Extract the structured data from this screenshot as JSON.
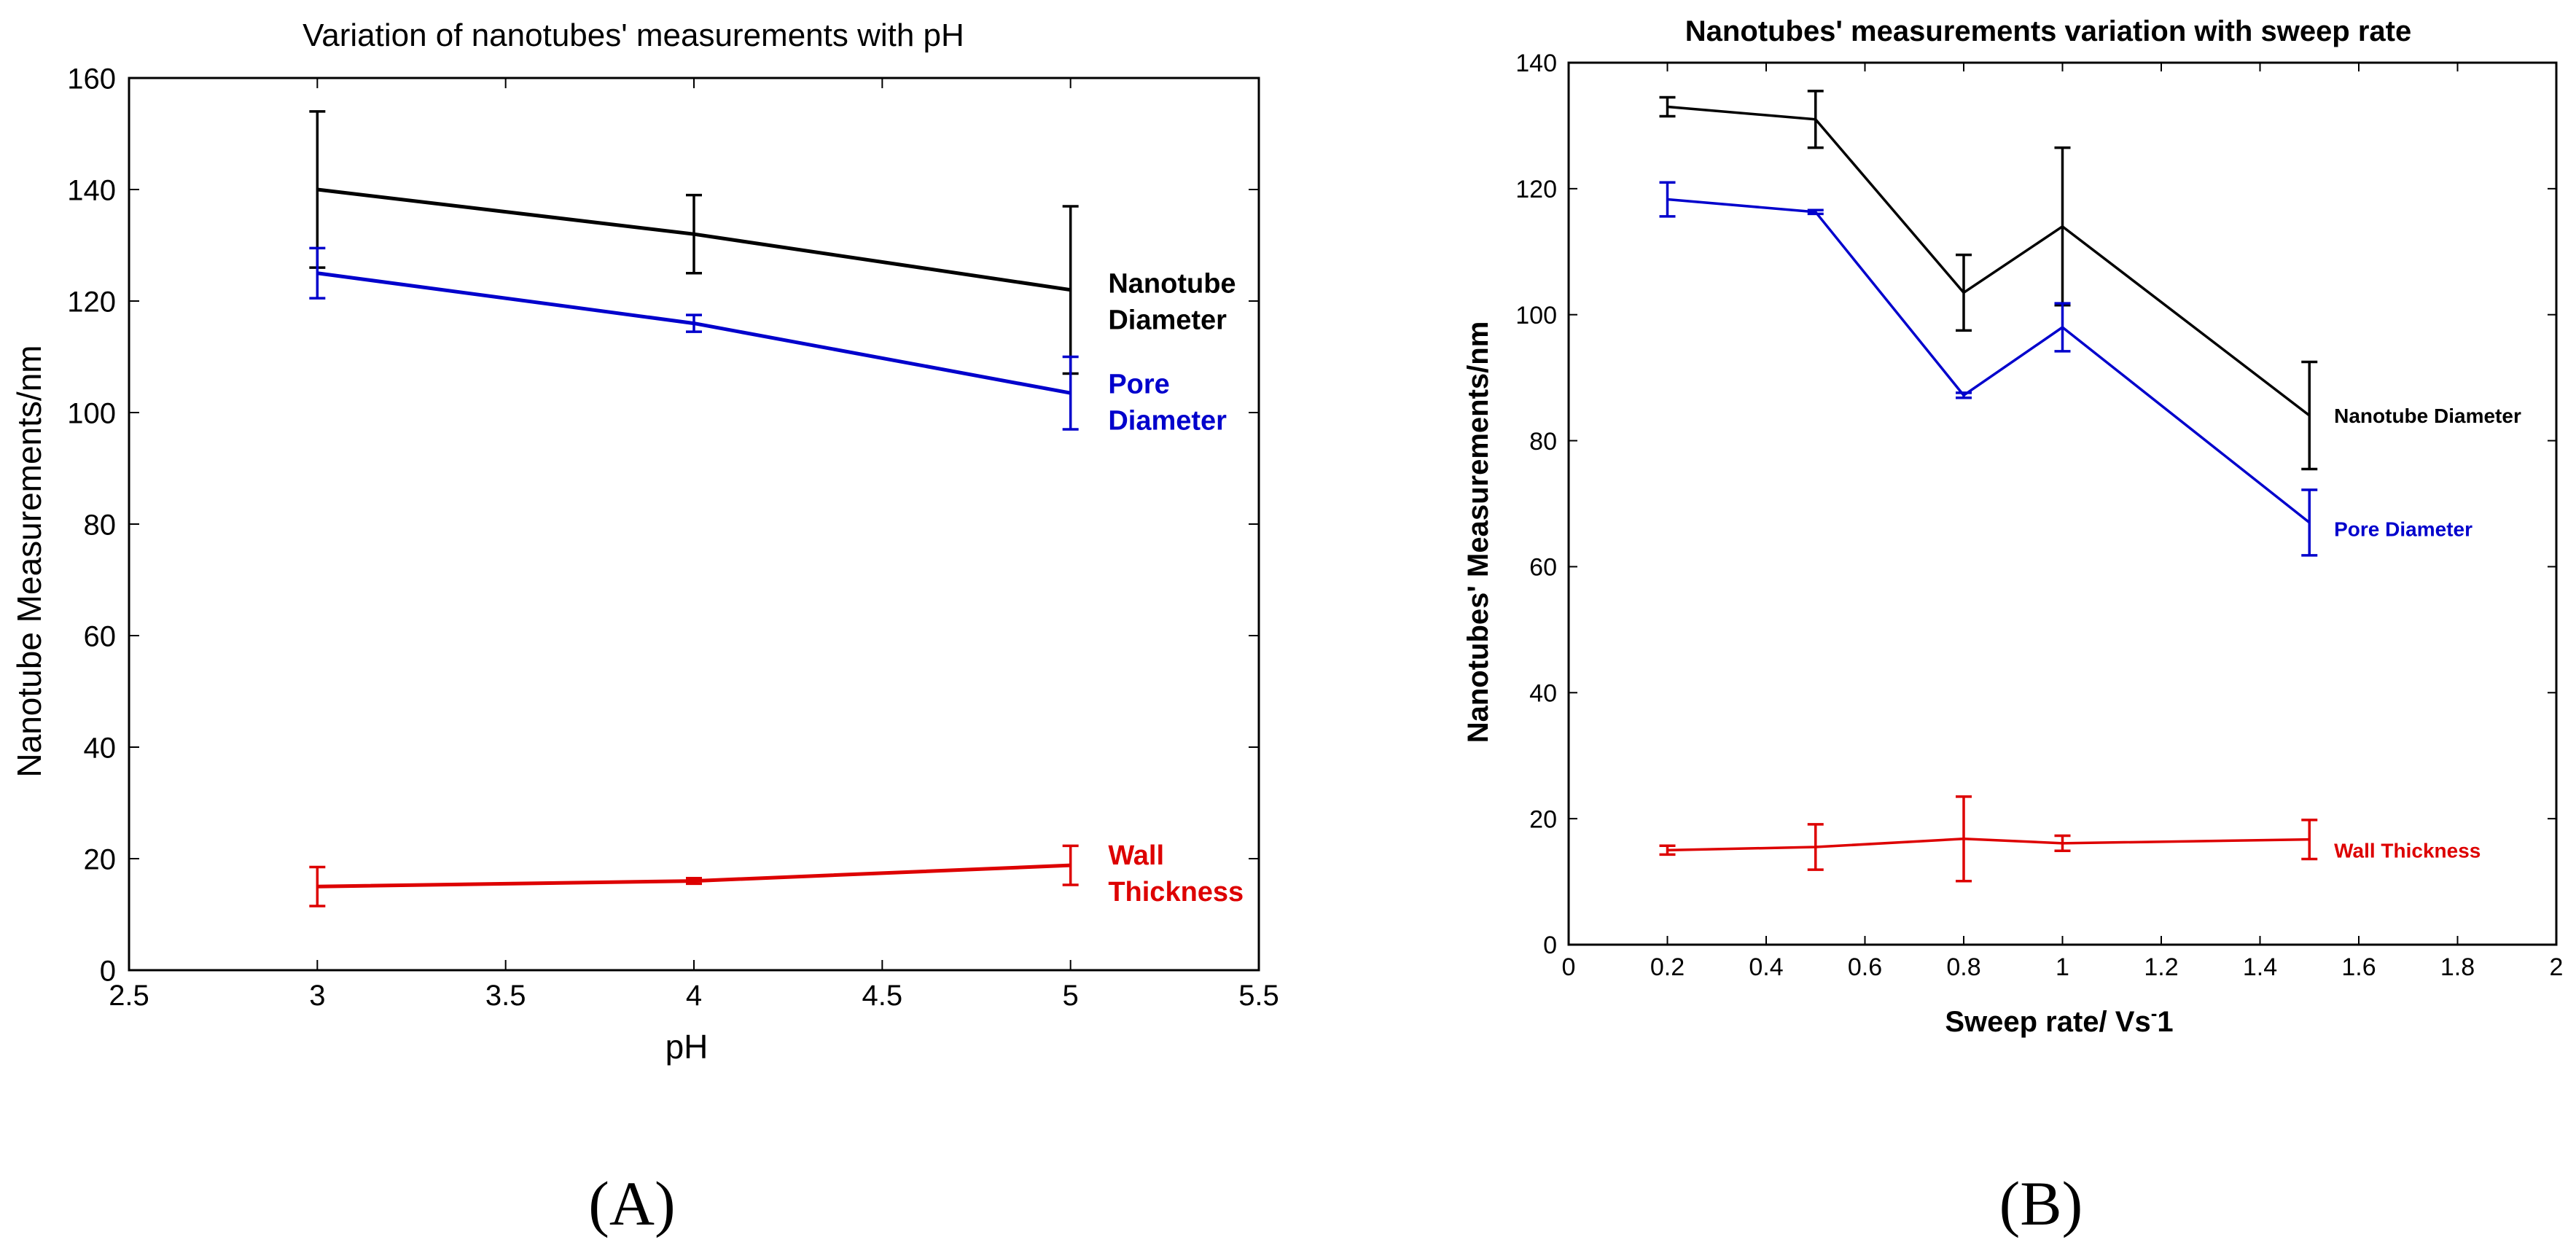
{
  "chart_data": [
    {
      "id": "A",
      "type": "line",
      "title": "Variation of nanotubes' measurements with pH",
      "xlabel": "pH",
      "ylabel": "Nanotube Measurements/nm",
      "xlim": [
        2.5,
        5.5
      ],
      "ylim": [
        0,
        160
      ],
      "xticks": [
        2.5,
        3,
        3.5,
        4,
        4.5,
        5,
        5.5
      ],
      "xtick_labels": [
        "2.5",
        "3",
        "3.5",
        "4",
        "4.5",
        "5",
        "5.5"
      ],
      "yticks": [
        0,
        20,
        40,
        60,
        80,
        100,
        120,
        140,
        160
      ],
      "ytick_labels": [
        "0",
        "20",
        "40",
        "60",
        "80",
        "100",
        "120",
        "140",
        "160"
      ],
      "grid": false,
      "panel_label": "(A)",
      "series": [
        {
          "name": "Nanotube Diameter",
          "label_lines": [
            "Nanotube",
            "Diameter"
          ],
          "color": "#000000",
          "x": [
            3,
            4,
            5
          ],
          "values": [
            140,
            132,
            122
          ],
          "errors": [
            14,
            7,
            15
          ],
          "label_anchor": [
            5.1,
            120
          ]
        },
        {
          "name": "Pore Diameter",
          "label_lines": [
            "Pore",
            "Diameter"
          ],
          "color": "#0000cc",
          "x": [
            3,
            4,
            5
          ],
          "values": [
            125,
            116,
            103.5
          ],
          "errors": [
            4.5,
            1.5,
            6.5
          ],
          "label_anchor": [
            5.1,
            102
          ]
        },
        {
          "name": "Wall Thickness",
          "label_lines": [
            "Wall",
            "Thickness"
          ],
          "color": "#dd0000",
          "x": [
            3,
            4,
            5
          ],
          "values": [
            15,
            16,
            18.8
          ],
          "errors": [
            3.5,
            0.5,
            3.5
          ],
          "label_anchor": [
            5.1,
            17.5
          ]
        }
      ]
    },
    {
      "id": "B",
      "type": "line",
      "title": "Nanotubes' measurements variation with sweep rate",
      "xlabel_main": "Sweep rate/ Vs",
      "xlabel_sup": "-",
      "xlabel_tail": "1",
      "ylabel": "Nanotubes' Measurements/nm",
      "xlim": [
        0,
        2
      ],
      "ylim": [
        0,
        140
      ],
      "xticks": [
        0,
        0.2,
        0.4,
        0.6,
        0.8,
        1,
        1.2,
        1.4,
        1.6,
        1.8,
        2
      ],
      "xtick_labels": [
        "0",
        "0.2",
        "0.4",
        "0.6",
        "0.8",
        "1",
        "1.2",
        "1.4",
        "1.6",
        "1.8",
        "2"
      ],
      "yticks": [
        0,
        20,
        40,
        60,
        80,
        100,
        120,
        140
      ],
      "ytick_labels": [
        "0",
        "20",
        "40",
        "60",
        "80",
        "100",
        "120",
        "140"
      ],
      "grid": false,
      "panel_label": "(B)",
      "series": [
        {
          "name": "Nanotube Diameter",
          "label_lines": [
            "Nanotube Diameter"
          ],
          "color": "#000000",
          "x": [
            0.2,
            0.5,
            0.8,
            1.0,
            1.5
          ],
          "values": [
            133,
            131,
            103.5,
            114,
            84
          ],
          "errors": [
            1.5,
            4.5,
            6,
            12.5,
            8.5
          ],
          "label_anchor": [
            1.55,
            84
          ]
        },
        {
          "name": "Pore Diameter",
          "label_lines": [
            "Pore Diameter"
          ],
          "color": "#0000cc",
          "x": [
            0.2,
            0.5,
            0.8,
            1.0,
            1.5
          ],
          "values": [
            118.3,
            116.3,
            87.2,
            98,
            67
          ],
          "errors": [
            2.7,
            0.3,
            0.4,
            3.8,
            5.2
          ],
          "label_anchor": [
            1.55,
            66
          ]
        },
        {
          "name": "Wall Thickness",
          "label_lines": [
            "Wall Thickness"
          ],
          "color": "#dd0000",
          "x": [
            0.2,
            0.5,
            0.8,
            1.0,
            1.5
          ],
          "values": [
            15,
            15.5,
            16.8,
            16.1,
            16.7
          ],
          "errors": [
            0.7,
            3.6,
            6.7,
            1.2,
            3.1
          ],
          "label_anchor": [
            1.55,
            15
          ]
        }
      ]
    }
  ]
}
